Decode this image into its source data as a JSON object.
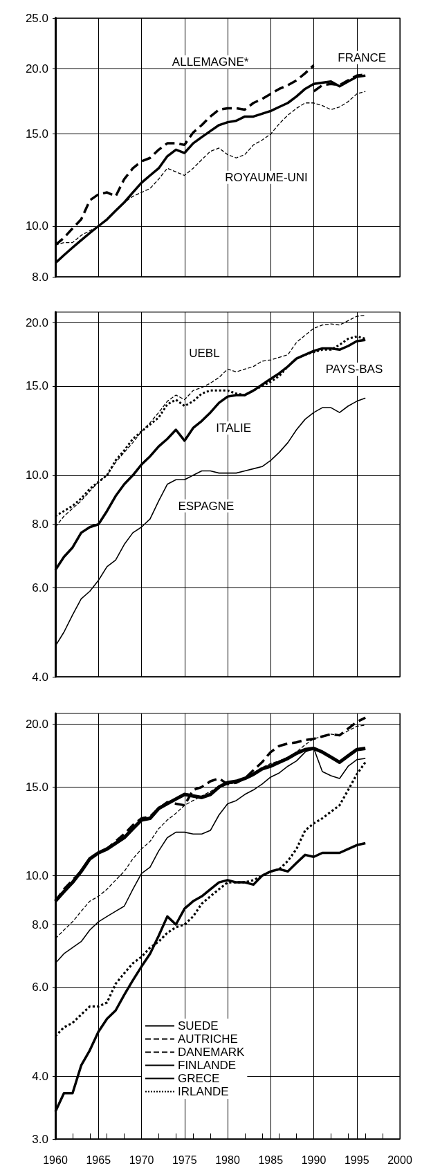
{
  "chart_data": [
    {
      "type": "line",
      "log": "y",
      "grid": true,
      "marker": "none",
      "tick_labels": "y",
      "xlim": [
        1960,
        2000
      ],
      "xticks": [
        1960,
        1965,
        1970,
        1975,
        1980,
        1985,
        1990,
        1995,
        2000
      ],
      "ylim": [
        8,
        25
      ],
      "yticks": [
        {
          "value": 8,
          "label": "8.0"
        },
        {
          "value": 10,
          "label": "10.0"
        },
        {
          "value": 15,
          "label": "15.0"
        },
        {
          "value": 20,
          "label": "20.0"
        },
        {
          "value": 25,
          "label": "25.0"
        }
      ],
      "x": [
        1960,
        1961,
        1962,
        1963,
        1964,
        1965,
        1966,
        1967,
        1968,
        1969,
        1970,
        1971,
        1972,
        1973,
        1974,
        1975,
        1976,
        1977,
        1978,
        1979,
        1980,
        1981,
        1982,
        1983,
        1984,
        1985,
        1986,
        1987,
        1988,
        1989,
        1990,
        1991,
        1992,
        1993,
        1994,
        1995,
        1996
      ],
      "series": [
        {
          "name": "ALLEMAGNE*",
          "color": "#000000",
          "line_style": "dashed",
          "x": [
            1960,
            1961,
            1962,
            1963,
            1964,
            1965,
            1966,
            1967,
            1968,
            1969,
            1970,
            1971,
            1972,
            1973,
            1974,
            1975,
            1976,
            1977,
            1978,
            1979,
            1980,
            1981,
            1982,
            1983,
            1984,
            1985,
            1986,
            1987,
            1988,
            1989,
            1990
          ],
          "values": [
            9.2,
            9.5,
            9.9,
            10.3,
            11.2,
            11.5,
            11.6,
            11.4,
            12.3,
            12.9,
            13.3,
            13.5,
            14.0,
            14.4,
            14.4,
            14.3,
            15.1,
            15.6,
            16.2,
            16.7,
            16.8,
            16.8,
            16.7,
            17.2,
            17.5,
            17.9,
            18.3,
            18.6,
            19.0,
            19.6,
            20.3
          ]
        },
        {
          "name": "FRANCE",
          "color": "#000000",
          "line_style": "solid",
          "values": [
            8.5,
            8.8,
            9.1,
            9.4,
            9.7,
            10.0,
            10.3,
            10.7,
            11.1,
            11.6,
            12.1,
            12.5,
            12.9,
            13.6,
            14.0,
            13.8,
            14.4,
            14.8,
            15.2,
            15.6,
            15.8,
            15.9,
            16.2,
            16.2,
            16.4,
            16.6,
            16.9,
            17.2,
            17.7,
            18.3,
            18.7,
            18.8,
            18.9,
            18.5,
            18.9,
            19.3,
            19.4
          ]
        },
        {
          "name": "ROYAUME-UNI",
          "color": "#000000",
          "line_style": "dashed",
          "values": [
            9.2,
            9.3,
            9.3,
            9.6,
            9.8,
            10.0,
            10.3,
            10.7,
            11.1,
            11.4,
            11.6,
            11.8,
            12.3,
            12.9,
            12.7,
            12.5,
            12.9,
            13.4,
            13.9,
            14.1,
            13.7,
            13.5,
            13.7,
            14.3,
            14.6,
            15.0,
            15.7,
            16.3,
            16.8,
            17.2,
            17.2,
            17.0,
            16.7,
            16.9,
            17.3,
            17.9,
            18.1
          ]
        },
        {
          "color": "#000000",
          "line_style": "dashed",
          "x": [
            1990,
            1991,
            1992,
            1993,
            1994,
            1995,
            1996
          ],
          "values": [
            18.1,
            18.6,
            18.7,
            18.6,
            19.0,
            19.4,
            19.5
          ]
        }
      ]
    },
    {
      "type": "line",
      "log": "y",
      "grid": true,
      "marker": "none",
      "tick_labels": "y",
      "xlim": [
        1960,
        2000
      ],
      "xticks": [
        1960,
        1965,
        1970,
        1975,
        1980,
        1985,
        1990,
        1995,
        2000
      ],
      "ylim": [
        4,
        21
      ],
      "yticks": [
        {
          "value": 4,
          "label": "4.0"
        },
        {
          "value": 6,
          "label": "6.0"
        },
        {
          "value": 8,
          "label": "8.0"
        },
        {
          "value": 10,
          "label": "10.0"
        },
        {
          "value": 15,
          "label": "15.0"
        },
        {
          "value": 20,
          "label": "20.0"
        }
      ],
      "x": [
        1960,
        1961,
        1962,
        1963,
        1964,
        1965,
        1966,
        1967,
        1968,
        1969,
        1970,
        1971,
        1972,
        1973,
        1974,
        1975,
        1976,
        1977,
        1978,
        1979,
        1980,
        1981,
        1982,
        1983,
        1984,
        1985,
        1986,
        1987,
        1988,
        1989,
        1990,
        1991,
        1992,
        1993,
        1994,
        1995,
        1996
      ],
      "series": [
        {
          "name": "UEBL",
          "color": "#000000",
          "line_style": "dashed",
          "values": [
            7.9,
            8.3,
            8.6,
            8.9,
            9.3,
            9.7,
            10.0,
            10.6,
            11.1,
            11.6,
            12.2,
            12.7,
            13.3,
            14.0,
            14.4,
            14.1,
            14.7,
            14.9,
            15.2,
            15.6,
            16.2,
            16.0,
            16.2,
            16.4,
            16.8,
            16.9,
            17.1,
            17.3,
            18.3,
            18.9,
            19.5,
            19.8,
            19.9,
            19.8,
            20.2,
            20.6,
            20.7
          ]
        },
        {
          "name": "PAYS-BAS",
          "color": "#000000",
          "line_style": "dotted",
          "values": [
            8.3,
            8.5,
            8.7,
            9.0,
            9.4,
            9.7,
            10.0,
            10.7,
            11.2,
            11.8,
            12.2,
            12.6,
            13.0,
            13.8,
            14.1,
            13.7,
            14.0,
            14.5,
            14.7,
            14.7,
            14.7,
            14.5,
            14.4,
            14.7,
            15.0,
            15.3,
            15.7,
            16.4,
            17.0,
            17.3,
            17.5,
            17.7,
            17.7,
            18.1,
            18.6,
            18.8,
            18.6
          ]
        },
        {
          "name": "ITALIE",
          "color": "#000000",
          "line_style": "solid",
          "values": [
            6.5,
            6.9,
            7.2,
            7.7,
            7.9,
            8.0,
            8.5,
            9.1,
            9.6,
            10.0,
            10.5,
            10.9,
            11.4,
            11.8,
            12.3,
            11.7,
            12.4,
            12.8,
            13.3,
            13.9,
            14.3,
            14.4,
            14.4,
            14.7,
            15.1,
            15.5,
            15.9,
            16.4,
            17.0,
            17.3,
            17.6,
            17.8,
            17.8,
            17.7,
            18.0,
            18.4,
            18.5
          ]
        },
        {
          "name": "ESPAGNE",
          "color": "#000000",
          "line_style": "solid",
          "values": [
            4.6,
            4.9,
            5.3,
            5.7,
            5.9,
            6.2,
            6.6,
            6.8,
            7.3,
            7.7,
            7.9,
            8.2,
            8.9,
            9.6,
            9.8,
            9.8,
            10.0,
            10.2,
            10.2,
            10.1,
            10.1,
            10.1,
            10.2,
            10.3,
            10.4,
            10.7,
            11.1,
            11.6,
            12.3,
            12.9,
            13.3,
            13.6,
            13.6,
            13.3,
            13.7,
            14.0,
            14.2
          ]
        }
      ]
    },
    {
      "type": "line",
      "log": "y",
      "grid": true,
      "marker": "none",
      "legend": "bottom",
      "xlim": [
        1960,
        2000
      ],
      "xticks": [
        1960,
        1965,
        1970,
        1975,
        1980,
        1985,
        1990,
        1995,
        2000
      ],
      "ylim": [
        3,
        21
      ],
      "yticks": [
        {
          "value": 3,
          "label": "3.0"
        },
        {
          "value": 4,
          "label": "4.0"
        },
        {
          "value": 6,
          "label": "6.0"
        },
        {
          "value": 8,
          "label": "8.0"
        },
        {
          "value": 10,
          "label": "10.0"
        },
        {
          "value": 15,
          "label": "15.0"
        },
        {
          "value": 20,
          "label": "20.0"
        }
      ],
      "x": [
        1960,
        1961,
        1962,
        1963,
        1964,
        1965,
        1966,
        1967,
        1968,
        1969,
        1970,
        1971,
        1972,
        1973,
        1974,
        1975,
        1976,
        1977,
        1978,
        1979,
        1980,
        1981,
        1982,
        1983,
        1984,
        1985,
        1986,
        1987,
        1988,
        1989,
        1990,
        1991,
        1992,
        1993,
        1994,
        1995,
        1996
      ],
      "series": [
        {
          "name": "SUEDE",
          "color": "#000000",
          "line_style": "solid",
          "values": [
            8.9,
            9.3,
            9.7,
            10.2,
            10.8,
            11.1,
            11.3,
            11.6,
            11.9,
            12.4,
            12.9,
            13.0,
            13.6,
            13.9,
            14.2,
            14.5,
            14.4,
            14.3,
            14.5,
            15.0,
            15.3,
            15.4,
            15.6,
            15.9,
            16.3,
            16.5,
            16.8,
            17.1,
            17.5,
            17.8,
            17.9,
            17.6,
            17.2,
            16.8,
            17.3,
            17.8,
            17.9
          ]
        },
        {
          "name": "AUTRICHE",
          "color": "#000000",
          "line_style": "dashed",
          "values": [
            7.5,
            7.8,
            8.1,
            8.5,
            8.9,
            9.1,
            9.4,
            9.8,
            10.2,
            10.8,
            11.3,
            11.7,
            12.4,
            12.9,
            13.3,
            13.8,
            14.1,
            14.4,
            14.7,
            15.0,
            15.2,
            15.3,
            15.6,
            16.0,
            16.4,
            16.7,
            16.9,
            17.2,
            17.6,
            18.2,
            18.7,
            18.9,
            19.1,
            19.0,
            19.4,
            19.8,
            19.9
          ]
        },
        {
          "name": "DANEMARK",
          "color": "#000000",
          "line_style": "dashed",
          "values": [
            8.9,
            9.4,
            9.8,
            10.2,
            10.8,
            11.1,
            11.3,
            11.7,
            12.1,
            12.6,
            13.0,
            13.1,
            13.6,
            14.0,
            13.9,
            13.8,
            14.8,
            15.0,
            15.4,
            15.6,
            15.2,
            15.3,
            15.6,
            16.2,
            16.8,
            17.6,
            18.1,
            18.3,
            18.4,
            18.6,
            18.7,
            18.9,
            19.1,
            19.0,
            19.6,
            20.2,
            20.6
          ]
        },
        {
          "name": "FINLANDE",
          "color": "#000000",
          "line_style": "solid",
          "values": [
            6.7,
            7.0,
            7.2,
            7.4,
            7.8,
            8.1,
            8.3,
            8.5,
            8.7,
            9.4,
            10.1,
            10.4,
            11.2,
            11.9,
            12.2,
            12.2,
            12.1,
            12.1,
            12.3,
            13.2,
            13.9,
            14.1,
            14.5,
            14.8,
            15.2,
            15.7,
            16.0,
            16.5,
            16.9,
            17.6,
            17.9,
            16.1,
            15.8,
            15.6,
            16.5,
            17.0,
            17.1
          ]
        },
        {
          "name": "GRECE",
          "color": "#000000",
          "line_style": "solid",
          "values": [
            3.4,
            3.7,
            3.7,
            4.2,
            4.5,
            4.9,
            5.2,
            5.4,
            5.8,
            6.2,
            6.6,
            7.0,
            7.6,
            8.3,
            8.0,
            8.6,
            8.9,
            9.1,
            9.4,
            9.7,
            9.8,
            9.7,
            9.7,
            9.6,
            10.0,
            10.2,
            10.3,
            10.2,
            10.6,
            11.0,
            10.9,
            11.1,
            11.1,
            11.1,
            11.3,
            11.5,
            11.6
          ]
        },
        {
          "name": "IRLANDE",
          "color": "#000000",
          "line_style": "dotted",
          "values": [
            4.8,
            5.0,
            5.1,
            5.3,
            5.5,
            5.5,
            5.6,
            6.1,
            6.4,
            6.7,
            6.9,
            7.2,
            7.4,
            7.7,
            7.9,
            8.0,
            8.3,
            8.8,
            9.1,
            9.4,
            9.7,
            9.7,
            9.7,
            9.8,
            10.0,
            10.2,
            10.3,
            10.7,
            11.3,
            12.3,
            12.7,
            13.0,
            13.4,
            13.8,
            14.8,
            15.9,
            16.8
          ]
        }
      ]
    }
  ]
}
